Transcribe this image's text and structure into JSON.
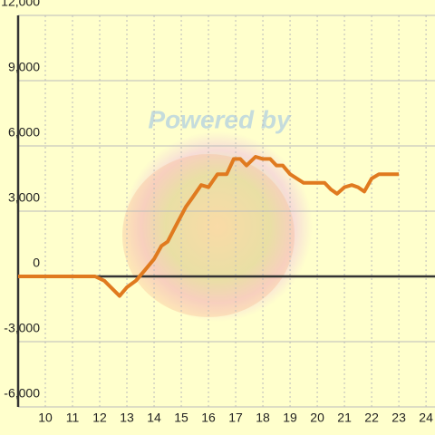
{
  "chart_data": {
    "type": "line",
    "watermark": "Powered by",
    "x": [
      9,
      11.83,
      12.17,
      12.73,
      13,
      13.33,
      13.67,
      14,
      14.27,
      14.5,
      14.83,
      15.17,
      15.4,
      15.73,
      16,
      16.33,
      16.67,
      16.93,
      17.17,
      17.4,
      17.73,
      18,
      18.27,
      18.5,
      18.73,
      19,
      19.5,
      20.27,
      20.5,
      20.73,
      21,
      21.27,
      21.5,
      21.73,
      22,
      22.27,
      23
    ],
    "series": [
      {
        "color": "#e07a1f",
        "values": [
          0,
          0,
          -200,
          -900,
          -500,
          -200,
          300,
          800,
          1400,
          1600,
          2400,
          3200,
          3600,
          4200,
          4100,
          4700,
          4700,
          5400,
          5400,
          5100,
          5500,
          5400,
          5400,
          5100,
          5100,
          4700,
          4300,
          4300,
          4000,
          3800,
          4100,
          4200,
          4100,
          3900,
          4500,
          4700,
          4700
        ]
      }
    ],
    "xlim": [
      9,
      24.33
    ],
    "xticks": [
      10,
      11,
      12,
      13,
      14,
      15,
      16,
      17,
      18,
      19,
      20,
      21,
      22,
      23,
      24
    ],
    "ylim": [
      -6000,
      12000
    ],
    "yticks": [
      {
        "value": -6000,
        "label": "-6,000"
      },
      {
        "value": -3000,
        "label": "-3,000"
      },
      0,
      {
        "value": 3000,
        "label": "3,000"
      },
      {
        "value": 6000,
        "label": "6,000"
      },
      {
        "value": 9000,
        "label": "9,000"
      },
      {
        "value": 12000,
        "label": "12,000"
      }
    ],
    "grid": true
  }
}
